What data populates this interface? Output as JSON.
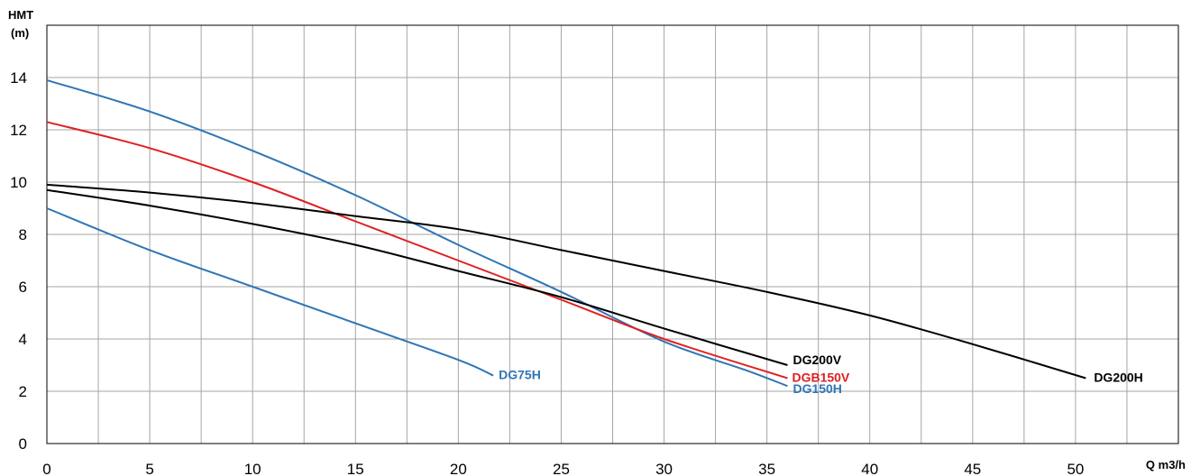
{
  "chart_data": {
    "type": "line",
    "title": "",
    "ylabel_line1": "HMT",
    "ylabel_line2": "(m)",
    "xlabel": "Q m3/h",
    "xlim": [
      0,
      55
    ],
    "ylim": [
      0,
      16
    ],
    "x_ticks": [
      0,
      5,
      10,
      15,
      20,
      25,
      30,
      35,
      40,
      45,
      50
    ],
    "y_ticks": [
      0,
      2,
      4,
      6,
      8,
      10,
      12,
      14
    ],
    "x_tick_labels": [
      "0",
      "5",
      "10",
      "15",
      "20",
      "25",
      "30",
      "35",
      "40",
      "45",
      "50"
    ],
    "y_tick_labels": [
      "0",
      "2",
      "4",
      "6",
      "8",
      "10",
      "12",
      "14"
    ],
    "grid": true,
    "grid_step_x": 2.5,
    "grid_step_y": 2,
    "series": [
      {
        "name": "DG75H",
        "color": "#2e75b6",
        "label_color": "#2e75b6",
        "x": [
          0,
          5,
          10,
          15,
          20,
          21.7
        ],
        "y": [
          9.0,
          7.4,
          6.0,
          4.6,
          3.2,
          2.6
        ]
      },
      {
        "name": "DG150H",
        "color": "#2e75b6",
        "label_color": "#2e75b6",
        "x": [
          0,
          5,
          10,
          15,
          20,
          25,
          30,
          34,
          36
        ],
        "y": [
          13.9,
          12.7,
          11.2,
          9.5,
          7.6,
          5.8,
          3.9,
          2.8,
          2.2
        ]
      },
      {
        "name": "DGB150V",
        "color": "#e02020",
        "label_color": "#e02020",
        "x": [
          0,
          5,
          10,
          15,
          20,
          25,
          30,
          36
        ],
        "y": [
          12.3,
          11.3,
          10.0,
          8.5,
          7.0,
          5.5,
          4.0,
          2.5
        ]
      },
      {
        "name": "DG200V",
        "color": "#000000",
        "label_color": "#000000",
        "x": [
          0,
          5,
          10,
          15,
          20,
          25,
          30,
          36
        ],
        "y": [
          9.7,
          9.1,
          8.4,
          7.6,
          6.6,
          5.6,
          4.4,
          3.0
        ]
      },
      {
        "name": "DG200H",
        "color": "#000000",
        "label_color": "#000000",
        "x": [
          0,
          5,
          10,
          15,
          20,
          25,
          30,
          35,
          40,
          45,
          50.5
        ],
        "y": [
          9.9,
          9.6,
          9.2,
          8.7,
          8.2,
          7.4,
          6.6,
          5.8,
          4.9,
          3.8,
          2.5
        ]
      }
    ]
  }
}
